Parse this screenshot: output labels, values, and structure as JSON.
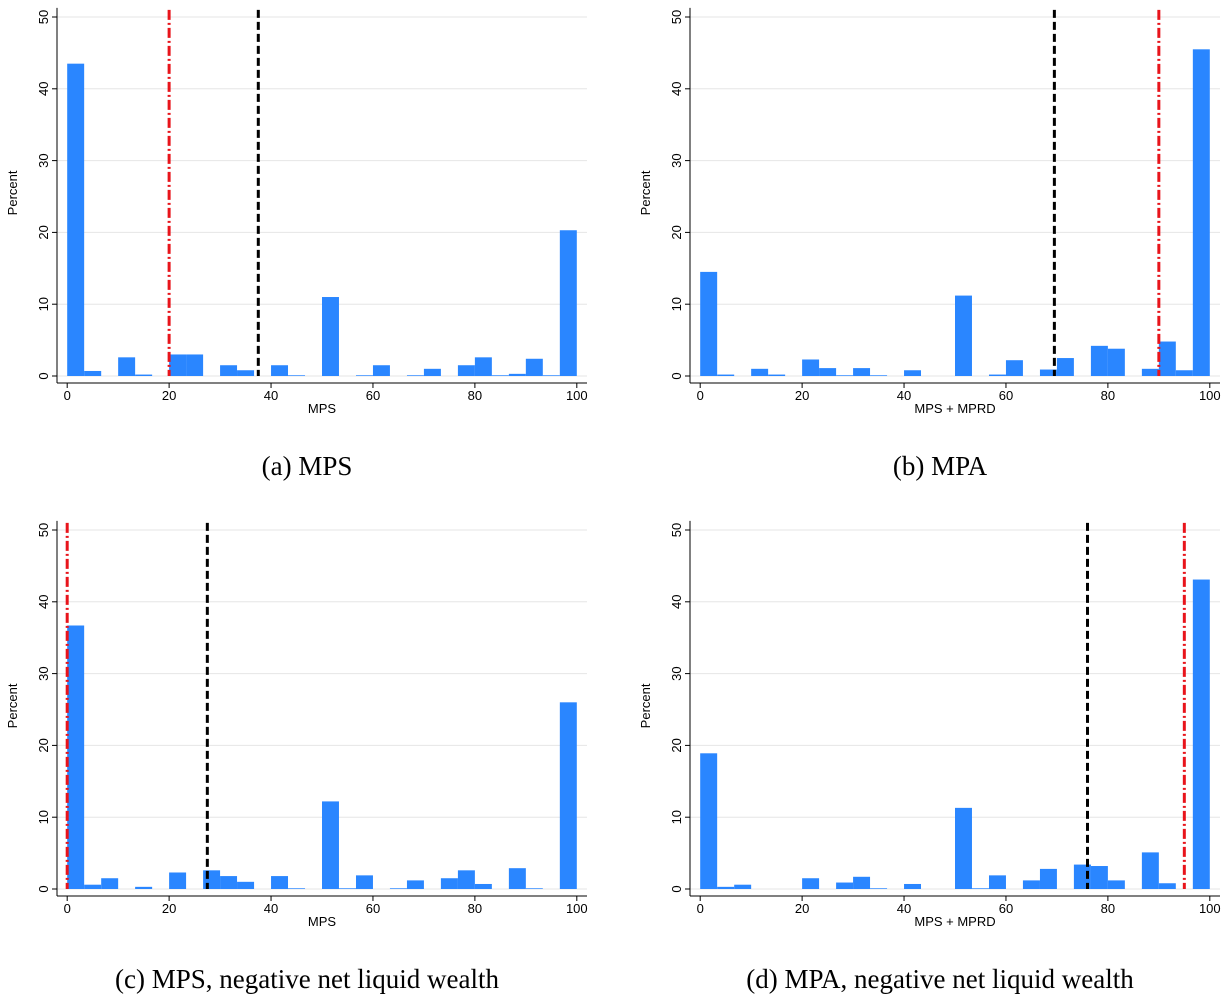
{
  "chart_data": [
    {
      "type": "histogram",
      "caption": "(a) MPS",
      "x_label": "MPS",
      "y_label": "Percent",
      "color": "#2a86ff",
      "bins": [
        0,
        3.33,
        6.67,
        10,
        13.33,
        16.67,
        20,
        23.33,
        26.67,
        30,
        33.33,
        36.67,
        40,
        43.33,
        46.67,
        50,
        53.33,
        56.67,
        60,
        63.33,
        66.67,
        70,
        73.33,
        76.67,
        80,
        83.33,
        86.67,
        90,
        93.33,
        96.67,
        100
      ],
      "values": [
        43.5,
        0.7,
        0,
        2.6,
        0.2,
        0,
        3.0,
        3.0,
        0,
        1.5,
        0.8,
        0,
        1.5,
        0.1,
        0,
        11.0,
        0,
        0.1,
        1.5,
        0,
        0.1,
        1.0,
        0,
        1.5,
        2.6,
        0.1,
        0.3,
        2.4,
        0.1,
        20.3
      ],
      "xlim": [
        -2,
        102
      ],
      "ylim": [
        0,
        51
      ],
      "xticks": [
        0,
        20,
        40,
        60,
        80,
        100
      ],
      "yticks": [
        0,
        10,
        20,
        30,
        40,
        50
      ],
      "grid": true,
      "vlines": [
        {
          "value": 20,
          "color": "#e8141b",
          "style": "dashdot"
        },
        {
          "value": 37.5,
          "color": "#000000",
          "style": "dash"
        }
      ]
    },
    {
      "type": "histogram",
      "caption": "(b) MPA",
      "x_label": "MPS + MPRD",
      "y_label": "Percent",
      "color": "#2a86ff",
      "bins": [
        0,
        3.33,
        6.67,
        10,
        13.33,
        16.67,
        20,
        23.33,
        26.67,
        30,
        33.33,
        36.67,
        40,
        43.33,
        46.67,
        50,
        53.33,
        56.67,
        60,
        63.33,
        66.67,
        70,
        73.33,
        76.67,
        80,
        83.33,
        86.67,
        90,
        93.33,
        96.67,
        100
      ],
      "values": [
        14.5,
        0.2,
        0,
        1.0,
        0.2,
        0,
        2.3,
        1.1,
        0.1,
        1.1,
        0.1,
        0,
        0.8,
        0,
        0,
        11.2,
        0,
        0.2,
        2.2,
        0,
        0.9,
        2.5,
        0,
        4.2,
        3.8,
        0,
        1.0,
        4.8,
        0.8,
        45.5
      ],
      "xlim": [
        -2,
        102
      ],
      "ylim": [
        0,
        51
      ],
      "xticks": [
        0,
        20,
        40,
        60,
        80,
        100
      ],
      "yticks": [
        0,
        10,
        20,
        30,
        40,
        50
      ],
      "grid": true,
      "vlines": [
        {
          "value": 69.5,
          "color": "#000000",
          "style": "dash"
        },
        {
          "value": 90,
          "color": "#e8141b",
          "style": "dashdot"
        }
      ]
    },
    {
      "type": "histogram",
      "caption": "(c) MPS, negative net liquid wealth",
      "x_label": "MPS",
      "y_label": "Percent",
      "color": "#2a86ff",
      "bins": [
        0,
        3.33,
        6.67,
        10,
        13.33,
        16.67,
        20,
        23.33,
        26.67,
        30,
        33.33,
        36.67,
        40,
        43.33,
        46.67,
        50,
        53.33,
        56.67,
        60,
        63.33,
        66.67,
        70,
        73.33,
        76.67,
        80,
        83.33,
        86.67,
        90,
        93.33,
        96.67,
        100
      ],
      "values": [
        36.7,
        0.6,
        1.5,
        0,
        0.3,
        0,
        2.3,
        0,
        2.6,
        1.8,
        1.0,
        0,
        1.8,
        0.1,
        0,
        12.2,
        0.1,
        1.9,
        0,
        0.1,
        1.2,
        0,
        1.5,
        2.6,
        0.7,
        0,
        2.9,
        0.1,
        0,
        26.0
      ],
      "xlim": [
        -2,
        102
      ],
      "ylim": [
        0,
        51
      ],
      "xticks": [
        0,
        20,
        40,
        60,
        80,
        100
      ],
      "yticks": [
        0,
        10,
        20,
        30,
        40,
        50
      ],
      "grid": true,
      "vlines": [
        {
          "value": 0,
          "color": "#e8141b",
          "style": "dashdot"
        },
        {
          "value": 27.5,
          "color": "#000000",
          "style": "dash"
        }
      ]
    },
    {
      "type": "histogram",
      "caption": "(d) MPA, negative net liquid wealth",
      "x_label": "MPS + MPRD",
      "y_label": "Percent",
      "color": "#2a86ff",
      "bins": [
        0,
        3.33,
        6.67,
        10,
        13.33,
        16.67,
        20,
        23.33,
        26.67,
        30,
        33.33,
        36.67,
        40,
        43.33,
        46.67,
        50,
        53.33,
        56.67,
        60,
        63.33,
        66.67,
        70,
        73.33,
        76.67,
        80,
        83.33,
        86.67,
        90,
        93.33,
        96.67,
        100
      ],
      "values": [
        18.9,
        0.3,
        0.6,
        0,
        0,
        0,
        1.5,
        0,
        0.9,
        1.7,
        0.1,
        0,
        0.7,
        0,
        0,
        11.3,
        0.1,
        1.9,
        0,
        1.2,
        2.8,
        0,
        3.4,
        3.2,
        1.2,
        0,
        5.1,
        0.8,
        0,
        43.1
      ],
      "xlim": [
        -2,
        102
      ],
      "ylim": [
        0,
        51
      ],
      "xticks": [
        0,
        20,
        40,
        60,
        80,
        100
      ],
      "yticks": [
        0,
        10,
        20,
        30,
        40,
        50
      ],
      "grid": true,
      "vlines": [
        {
          "value": 76,
          "color": "#000000",
          "style": "dash"
        },
        {
          "value": 95,
          "color": "#e8141b",
          "style": "dashdot"
        }
      ]
    }
  ]
}
